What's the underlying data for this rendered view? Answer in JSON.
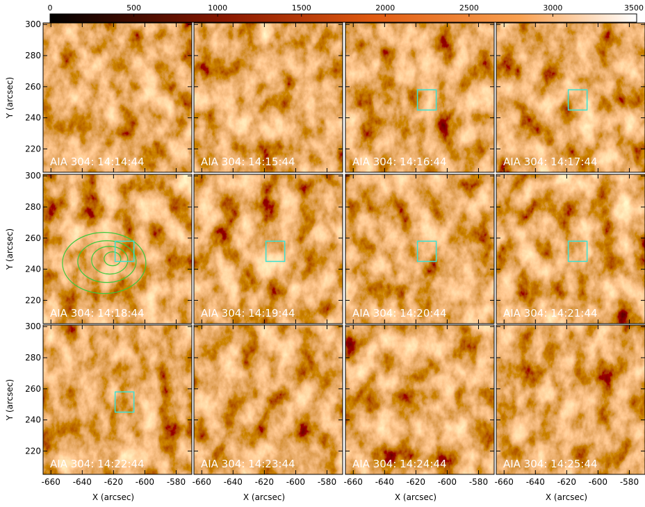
{
  "chart_data": {
    "type": "image-grid",
    "colorbar": {
      "lim": [
        0,
        3500
      ],
      "ticks": [
        0,
        500,
        1000,
        1500,
        2000,
        2500,
        3000,
        3500
      ]
    },
    "xlim": [
      -665,
      -570
    ],
    "ylim": [
      205,
      301
    ],
    "xticks": [
      -660,
      -640,
      -620,
      -600,
      -580
    ],
    "yticks": [
      220,
      240,
      260,
      280,
      300
    ],
    "xlabel": "X (arcsec)",
    "ylabel": "Y (arcsec)",
    "roi": {
      "x": [
        -619,
        -607
      ],
      "y": [
        245,
        258
      ],
      "color": "#40e0d0"
    },
    "panels": [
      {
        "label": "AIA 304: 14:14:44",
        "roi": false
      },
      {
        "label": "AIA 304: 14:15:44",
        "roi": false
      },
      {
        "label": "AIA 304: 14:16:44",
        "roi": true
      },
      {
        "label": "AIA 304: 14:17:44",
        "roi": true
      },
      {
        "label": "AIA 304: 14:18:44",
        "roi": true,
        "contours": true
      },
      {
        "label": "AIA 304: 14:19:44",
        "roi": true
      },
      {
        "label": "AIA 304: 14:20:44",
        "roi": true
      },
      {
        "label": "AIA 304: 14:21:44",
        "roi": true
      },
      {
        "label": "AIA 304: 14:22:44",
        "roi": true
      },
      {
        "label": "AIA 304: 14:23:44",
        "roi": false
      },
      {
        "label": "AIA 304: 14:24:44",
        "roi": false
      },
      {
        "label": "AIA 304: 14:25:44",
        "roi": false
      }
    ]
  }
}
